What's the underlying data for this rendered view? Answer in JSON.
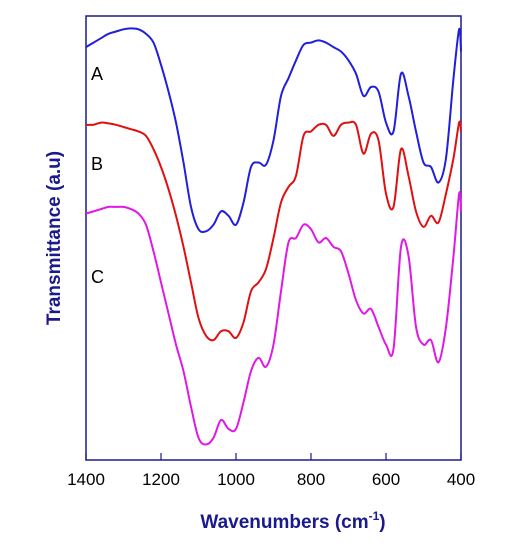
{
  "chart_data": {
    "type": "line",
    "xlabel": "Wavenumbers (cm",
    "xlabel_sup": "-1",
    "xlabel_close": ")",
    "ylabel": "Transmittance (a.u)",
    "xlim": [
      1400,
      400
    ],
    "x_reversed": true,
    "ylim": [
      0,
      1
    ],
    "y_ticks_shown": false,
    "x_ticks": [
      1400,
      1200,
      1000,
      800,
      600,
      400
    ],
    "x_tick_labels": [
      "1400",
      "1200",
      "1000",
      "800",
      "600",
      "400"
    ],
    "grid": false,
    "axis_color": "#1a1a8c",
    "series": [
      {
        "name": "A",
        "color": "#1f1fdc",
        "x": [
          1400,
          1380,
          1360,
          1340,
          1320,
          1300,
          1280,
          1260,
          1240,
          1220,
          1200,
          1180,
          1160,
          1140,
          1120,
          1100,
          1080,
          1060,
          1040,
          1020,
          1000,
          980,
          960,
          940,
          920,
          900,
          880,
          860,
          840,
          820,
          800,
          780,
          760,
          740,
          720,
          700,
          680,
          660,
          640,
          620,
          600,
          580,
          560,
          540,
          520,
          500,
          480,
          460,
          440,
          420,
          405,
          400
        ],
        "y": [
          0.93,
          0.94,
          0.95,
          0.96,
          0.965,
          0.97,
          0.972,
          0.97,
          0.96,
          0.94,
          0.89,
          0.83,
          0.76,
          0.67,
          0.57,
          0.52,
          0.515,
          0.53,
          0.56,
          0.55,
          0.53,
          0.58,
          0.66,
          0.67,
          0.665,
          0.72,
          0.82,
          0.86,
          0.9,
          0.935,
          0.94,
          0.945,
          0.94,
          0.93,
          0.92,
          0.9,
          0.87,
          0.82,
          0.84,
          0.83,
          0.76,
          0.74,
          0.87,
          0.82,
          0.74,
          0.67,
          0.66,
          0.625,
          0.68,
          0.86,
          0.97,
          0.92
        ]
      },
      {
        "name": "B",
        "color": "#e01010",
        "x": [
          1400,
          1380,
          1360,
          1340,
          1320,
          1300,
          1280,
          1260,
          1240,
          1220,
          1200,
          1180,
          1160,
          1140,
          1120,
          1100,
          1080,
          1060,
          1040,
          1020,
          1000,
          980,
          960,
          940,
          920,
          900,
          880,
          860,
          840,
          820,
          800,
          780,
          760,
          740,
          720,
          700,
          680,
          660,
          640,
          620,
          600,
          580,
          560,
          540,
          520,
          500,
          480,
          460,
          440,
          420,
          405,
          400
        ],
        "y": [
          0.755,
          0.755,
          0.76,
          0.758,
          0.755,
          0.75,
          0.745,
          0.74,
          0.73,
          0.7,
          0.66,
          0.61,
          0.55,
          0.48,
          0.4,
          0.32,
          0.28,
          0.27,
          0.29,
          0.29,
          0.275,
          0.31,
          0.38,
          0.4,
          0.43,
          0.5,
          0.58,
          0.615,
          0.64,
          0.73,
          0.74,
          0.755,
          0.755,
          0.73,
          0.755,
          0.76,
          0.755,
          0.69,
          0.735,
          0.72,
          0.6,
          0.57,
          0.7,
          0.64,
          0.56,
          0.525,
          0.55,
          0.535,
          0.6,
          0.68,
          0.76,
          0.74
        ]
      },
      {
        "name": "C",
        "color": "#e018e6",
        "x": [
          1400,
          1380,
          1360,
          1340,
          1320,
          1300,
          1280,
          1260,
          1240,
          1220,
          1200,
          1180,
          1160,
          1140,
          1120,
          1100,
          1080,
          1060,
          1040,
          1020,
          1000,
          980,
          960,
          940,
          920,
          900,
          880,
          860,
          840,
          820,
          800,
          780,
          760,
          740,
          720,
          700,
          680,
          660,
          640,
          620,
          600,
          580,
          560,
          540,
          520,
          500,
          480,
          460,
          440,
          420,
          405,
          400
        ],
        "y": [
          0.555,
          0.56,
          0.565,
          0.57,
          0.57,
          0.57,
          0.565,
          0.555,
          0.53,
          0.47,
          0.4,
          0.33,
          0.26,
          0.2,
          0.12,
          0.05,
          0.035,
          0.05,
          0.09,
          0.07,
          0.07,
          0.13,
          0.2,
          0.23,
          0.21,
          0.26,
          0.38,
          0.49,
          0.5,
          0.53,
          0.52,
          0.49,
          0.5,
          0.48,
          0.47,
          0.42,
          0.36,
          0.33,
          0.34,
          0.3,
          0.26,
          0.25,
          0.48,
          0.46,
          0.3,
          0.26,
          0.27,
          0.22,
          0.3,
          0.46,
          0.6,
          0.56
        ]
      }
    ]
  }
}
